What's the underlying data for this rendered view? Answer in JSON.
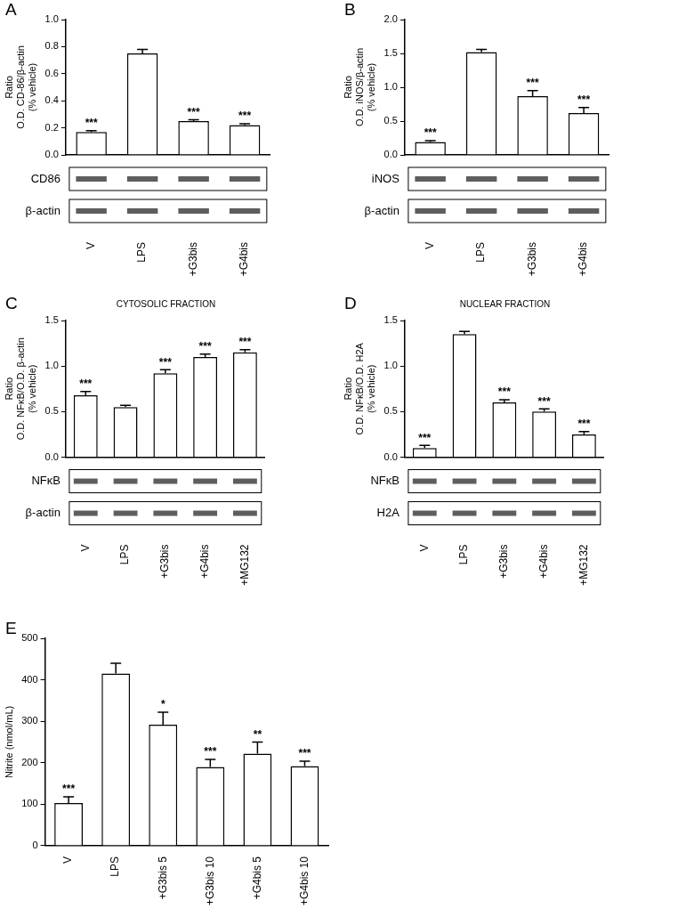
{
  "chart_data": [
    {
      "type": "bar",
      "panel": "A",
      "y_label": [
        "Ratio",
        "O.D. CD-86/β-actin",
        "(% vehicle)"
      ],
      "categories": [
        "V",
        "LPS",
        "+G3bis",
        "+G4bis"
      ],
      "values": [
        0.17,
        0.75,
        0.25,
        0.22
      ],
      "errors": [
        0.01,
        0.03,
        0.01,
        0.01
      ],
      "significance": [
        "***",
        null,
        "***",
        "***"
      ],
      "ylim": [
        0,
        1.0
      ],
      "yticks": [
        {
          "value": 0,
          "label": "0.0"
        },
        0.2,
        0.4,
        0.6,
        0.8,
        {
          "value": 1.0,
          "label": "1.0"
        }
      ],
      "grid": false,
      "blots": [
        "CD86",
        "β-actin"
      ]
    },
    {
      "type": "bar",
      "panel": "B",
      "y_label": [
        "Ratio",
        "O.D. iNOS/β-actin",
        "(% vehicle)"
      ],
      "categories": [
        "V",
        "LPS",
        "+G3bis",
        "+G4bis"
      ],
      "values": [
        0.19,
        1.52,
        0.87,
        0.62
      ],
      "errors": [
        0.02,
        0.04,
        0.08,
        0.08
      ],
      "significance": [
        "***",
        null,
        "***",
        "***"
      ],
      "ylim": [
        0,
        2.0
      ],
      "yticks": [
        {
          "value": 0,
          "label": "0.0"
        },
        0.5,
        {
          "value": 1.0,
          "label": "1.0"
        },
        1.5,
        {
          "value": 2.0,
          "label": "2.0"
        }
      ],
      "grid": false,
      "blots": [
        "iNOS",
        "β-actin"
      ]
    },
    {
      "type": "bar",
      "panel": "C",
      "subtitle": "CYTOSOLIC FRACTION",
      "y_label": [
        "Ratio",
        "O.D. NFκB/O.D. β-actin",
        "(% vehicle)"
      ],
      "categories": [
        "V",
        "LPS",
        "+G3bis",
        "+G4bis",
        "+MG132"
      ],
      "values": [
        0.68,
        0.55,
        0.92,
        1.1,
        1.15
      ],
      "errors": [
        0.04,
        0.02,
        0.04,
        0.03,
        0.03
      ],
      "significance": [
        "***",
        null,
        "***",
        "***",
        "***"
      ],
      "ylim": [
        0,
        1.5
      ],
      "yticks": [
        {
          "value": 0,
          "label": "0.0"
        },
        0.5,
        {
          "value": 1.0,
          "label": "1.0"
        },
        1.5
      ],
      "grid": false,
      "blots": [
        "NFκB",
        "β-actin"
      ]
    },
    {
      "type": "bar",
      "panel": "D",
      "subtitle": "NUCLEAR FRACTION",
      "y_label": [
        "Ratio",
        "O.D. NFκB/O.D. H2A",
        "(% vehicle)"
      ],
      "categories": [
        "V",
        "LPS",
        "+G3bis",
        "+G4bis",
        "+MG132"
      ],
      "values": [
        0.1,
        1.35,
        0.6,
        0.5,
        0.25
      ],
      "errors": [
        0.03,
        0.03,
        0.03,
        0.03,
        0.03
      ],
      "significance": [
        "***",
        null,
        "***",
        "***",
        "***"
      ],
      "ylim": [
        0,
        1.5
      ],
      "yticks": [
        {
          "value": 0,
          "label": "0.0"
        },
        0.5,
        {
          "value": 1.0,
          "label": "1.0"
        },
        1.5
      ],
      "grid": false,
      "blots": [
        "NFκB",
        "H2A"
      ]
    },
    {
      "type": "bar",
      "panel": "E",
      "y_label": [
        "Nitrite (nmol/mL)"
      ],
      "categories": [
        "V",
        "LPS",
        "+G3bis 5",
        "+G3bis 10",
        "+G4bis 5",
        "+G4bis 10"
      ],
      "values": [
        103,
        415,
        292,
        190,
        222,
        192
      ],
      "errors": [
        15,
        25,
        30,
        18,
        28,
        12
      ],
      "significance": [
        "***",
        null,
        "*",
        "***",
        "**",
        "***"
      ],
      "ylim": [
        0,
        500
      ],
      "yticks": [
        0,
        100,
        200,
        300,
        400,
        500
      ],
      "grid": false
    }
  ]
}
